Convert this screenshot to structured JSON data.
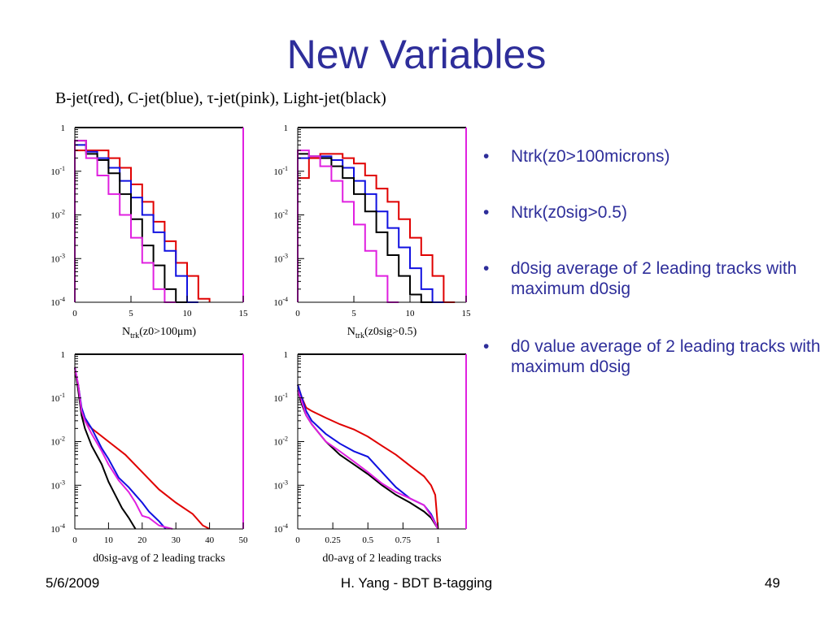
{
  "slide": {
    "title": "New Variables",
    "legend_caption": "B-jet(red), C-jet(blue), τ-jet(pink), Light-jet(black)",
    "bullets": [
      "Ntrk(z0>100microns)",
      "Ntrk(z0sig>0.5)",
      "d0sig average of 2 leading tracks with maximum d0sig",
      "d0 value average of 2 leading tracks with maximum d0sig"
    ],
    "bullet_marker": "•",
    "footer": {
      "date": "5/6/2009",
      "center": "H. Yang - BDT B-tagging",
      "page": "49"
    }
  },
  "colors": {
    "title": "#2E2E9A",
    "b_jet": "#E00000",
    "c_jet": "#1010E0",
    "tau_jet": "#E020E0",
    "light_jet": "#000000",
    "frame_right": "#E020E0"
  },
  "chart_data": [
    {
      "type": "histogram",
      "log_y": true,
      "ylim": [
        0.0001,
        1
      ],
      "y_ticks": [
        "1",
        "10-1",
        "10-2",
        "10-3",
        "10-4"
      ],
      "x_ticks": [
        "0",
        "5",
        "10",
        "15"
      ],
      "xlim": [
        0,
        15
      ],
      "xlabel": {
        "main": "N",
        "sub": "trk",
        "rest": "(z0>100μm)"
      },
      "bin_width": 1,
      "series": [
        {
          "color": "#E00000",
          "values": [
            0.3,
            0.3,
            0.3,
            0.2,
            0.12,
            0.05,
            0.02,
            0.007,
            0.0025,
            0.0008,
            0.0004,
            0.00012
          ]
        },
        {
          "color": "#1010E0",
          "values": [
            0.4,
            0.28,
            0.2,
            0.12,
            0.06,
            0.025,
            0.01,
            0.004,
            0.0015,
            0.0004,
            0.0001
          ]
        },
        {
          "color": "#000000",
          "values": [
            0.5,
            0.25,
            0.18,
            0.09,
            0.03,
            0.008,
            0.002,
            0.0007,
            0.0002,
            0.0001
          ]
        },
        {
          "color": "#E020E0",
          "values": [
            0.5,
            0.2,
            0.08,
            0.03,
            0.01,
            0.003,
            0.0008,
            0.0002,
            0.0001
          ]
        }
      ]
    },
    {
      "type": "histogram",
      "log_y": true,
      "ylim": [
        0.0001,
        1
      ],
      "y_ticks": [
        "1",
        "10-1",
        "10-2",
        "10-3",
        "10-4"
      ],
      "x_ticks": [
        "0",
        "5",
        "10",
        "15"
      ],
      "xlim": [
        0,
        15
      ],
      "xlabel": {
        "main": "N",
        "sub": "trk",
        "rest": "(z0sig>0.5)"
      },
      "bin_width": 1,
      "series": [
        {
          "color": "#E00000",
          "values": [
            0.07,
            0.2,
            0.25,
            0.25,
            0.2,
            0.15,
            0.08,
            0.04,
            0.02,
            0.008,
            0.003,
            0.0012,
            0.0004,
            0.0001
          ]
        },
        {
          "color": "#1010E0",
          "values": [
            0.2,
            0.22,
            0.22,
            0.18,
            0.12,
            0.06,
            0.03,
            0.012,
            0.005,
            0.0018,
            0.0006,
            0.0002,
            0.0001
          ]
        },
        {
          "color": "#000000",
          "values": [
            0.25,
            0.22,
            0.2,
            0.13,
            0.07,
            0.03,
            0.012,
            0.004,
            0.0012,
            0.0004,
            0.00015,
            0.0001
          ]
        },
        {
          "color": "#E020E0",
          "values": [
            0.3,
            0.22,
            0.13,
            0.06,
            0.02,
            0.006,
            0.0015,
            0.0004,
            0.0001
          ]
        }
      ]
    },
    {
      "type": "histogram",
      "log_y": true,
      "ylim": [
        0.0001,
        1
      ],
      "y_ticks": [
        "1",
        "10-1",
        "10-2",
        "10-3",
        "10-4"
      ],
      "x_ticks": [
        "0",
        "10",
        "20",
        "30",
        "40",
        "50"
      ],
      "xlim": [
        0,
        50
      ],
      "xlabel": {
        "main": "d0sig-avg of 2 leading tracks",
        "sub": "",
        "rest": ""
      },
      "curves": [
        {
          "color": "#E00000",
          "points": [
            [
              0,
              0.4
            ],
            [
              1,
              0.2
            ],
            [
              2,
              0.05
            ],
            [
              3,
              0.03
            ],
            [
              5,
              0.02
            ],
            [
              10,
              0.01
            ],
            [
              15,
              0.005
            ],
            [
              20,
              0.002
            ],
            [
              25,
              0.0008
            ],
            [
              30,
              0.0004
            ],
            [
              35,
              0.00022
            ],
            [
              38,
              0.00012
            ],
            [
              40,
              0.0001
            ]
          ]
        },
        {
          "color": "#1010E0",
          "points": [
            [
              0,
              0.5
            ],
            [
              1,
              0.2
            ],
            [
              2,
              0.06
            ],
            [
              3,
              0.035
            ],
            [
              5,
              0.02
            ],
            [
              8,
              0.007
            ],
            [
              10,
              0.004
            ],
            [
              13,
              0.0015
            ],
            [
              16,
              0.0009
            ],
            [
              18,
              0.0006
            ],
            [
              20,
              0.0004
            ],
            [
              22,
              0.00025
            ],
            [
              25,
              0.00015
            ],
            [
              27,
              0.0001
            ]
          ]
        },
        {
          "color": "#000000",
          "points": [
            [
              0,
              0.5
            ],
            [
              1,
              0.15
            ],
            [
              2,
              0.04
            ],
            [
              3,
              0.02
            ],
            [
              5,
              0.008
            ],
            [
              8,
              0.003
            ],
            [
              10,
              0.0012
            ],
            [
              12,
              0.0006
            ],
            [
              14,
              0.0003
            ],
            [
              16,
              0.00018
            ],
            [
              18,
              0.0001
            ]
          ]
        },
        {
          "color": "#E020E0",
          "points": [
            [
              0,
              0.5
            ],
            [
              1,
              0.2
            ],
            [
              2,
              0.05
            ],
            [
              3,
              0.03
            ],
            [
              5,
              0.015
            ],
            [
              8,
              0.006
            ],
            [
              10,
              0.003
            ],
            [
              13,
              0.0013
            ],
            [
              16,
              0.0007
            ],
            [
              18,
              0.0004
            ],
            [
              20,
              0.0002
            ],
            [
              22,
              0.00018
            ],
            [
              25,
              0.00012
            ],
            [
              29,
              0.0001
            ]
          ]
        }
      ]
    },
    {
      "type": "histogram",
      "log_y": true,
      "ylim": [
        0.0001,
        1
      ],
      "y_ticks": [
        "1",
        "10-1",
        "10-2",
        "10-3",
        "10-4"
      ],
      "x_ticks": [
        "0",
        "0.25",
        "0.5",
        "0.75",
        "1"
      ],
      "xlim": [
        0,
        1.2
      ],
      "xlabel": {
        "main": "d0-avg of 2 leading tracks",
        "sub": "",
        "rest": ""
      },
      "curves": [
        {
          "color": "#E00000",
          "points": [
            [
              0,
              0.2
            ],
            [
              0.03,
              0.1
            ],
            [
              0.06,
              0.06
            ],
            [
              0.1,
              0.05
            ],
            [
              0.2,
              0.035
            ],
            [
              0.3,
              0.025
            ],
            [
              0.4,
              0.019
            ],
            [
              0.5,
              0.013
            ],
            [
              0.6,
              0.008
            ],
            [
              0.7,
              0.005
            ],
            [
              0.8,
              0.0028
            ],
            [
              0.9,
              0.0016
            ],
            [
              0.95,
              0.001
            ],
            [
              0.98,
              0.0006
            ],
            [
              1.0,
              0.0001
            ]
          ]
        },
        {
          "color": "#1010E0",
          "points": [
            [
              0,
              0.2
            ],
            [
              0.03,
              0.1
            ],
            [
              0.06,
              0.05
            ],
            [
              0.1,
              0.03
            ],
            [
              0.2,
              0.015
            ],
            [
              0.3,
              0.009
            ],
            [
              0.4,
              0.006
            ],
            [
              0.5,
              0.0045
            ],
            [
              0.6,
              0.002
            ],
            [
              0.7,
              0.0009
            ],
            [
              0.8,
              0.0005
            ],
            [
              0.9,
              0.00035
            ],
            [
              0.95,
              0.00022
            ],
            [
              1.0,
              0.0001
            ]
          ]
        },
        {
          "color": "#000000",
          "points": [
            [
              0,
              0.15
            ],
            [
              0.03,
              0.07
            ],
            [
              0.06,
              0.04
            ],
            [
              0.1,
              0.025
            ],
            [
              0.2,
              0.01
            ],
            [
              0.3,
              0.005
            ],
            [
              0.4,
              0.003
            ],
            [
              0.5,
              0.0018
            ],
            [
              0.6,
              0.001
            ],
            [
              0.7,
              0.0006
            ],
            [
              0.8,
              0.0004
            ],
            [
              0.9,
              0.00025
            ],
            [
              0.95,
              0.00018
            ],
            [
              1.0,
              0.0001
            ]
          ]
        },
        {
          "color": "#E020E0",
          "points": [
            [
              0,
              0.15
            ],
            [
              0.03,
              0.08
            ],
            [
              0.06,
              0.04
            ],
            [
              0.1,
              0.025
            ],
            [
              0.2,
              0.01
            ],
            [
              0.3,
              0.006
            ],
            [
              0.4,
              0.0035
            ],
            [
              0.5,
              0.002
            ],
            [
              0.6,
              0.0011
            ],
            [
              0.7,
              0.0007
            ],
            [
              0.8,
              0.0005
            ],
            [
              0.9,
              0.00035
            ],
            [
              0.95,
              0.0002
            ],
            [
              1.0,
              0.0001
            ]
          ]
        }
      ]
    }
  ]
}
